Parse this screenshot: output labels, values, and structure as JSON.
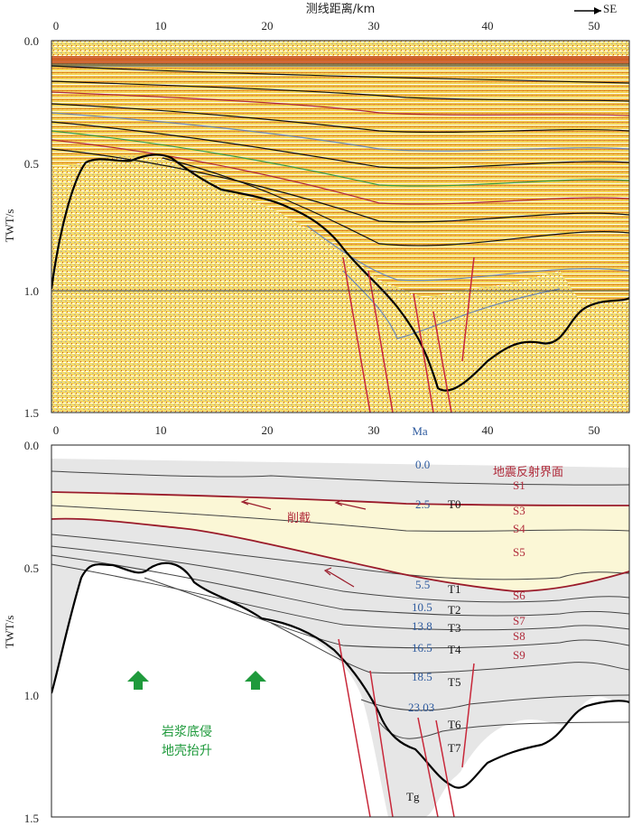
{
  "top_panel": {
    "x_axis_title": "测线距离/km",
    "direction_label": "SE",
    "y_axis_title": "TWT/s",
    "x_ticks": [
      "0",
      "10",
      "20",
      "30",
      "40",
      "50"
    ],
    "y_ticks": [
      "0.0",
      "0.5",
      "1.0",
      "1.5"
    ]
  },
  "bottom_panel": {
    "y_axis_title": "TWT/s",
    "x_ticks": [
      "0",
      "10",
      "20",
      "30",
      "40",
      "50"
    ],
    "y_ticks": [
      "0.0",
      "0.5",
      "1.0",
      "1.5"
    ],
    "ma_header": "Ma",
    "legend_title": "地震反射界面",
    "truncation_label": "削截",
    "magma_label_1": "岩浆底侵",
    "magma_label_2": "地壳抬升",
    "ages": [
      "0.0",
      "2.5",
      "5.5",
      "10.5",
      "13.8",
      "16.5",
      "18.5",
      "23.03"
    ],
    "t_labels": [
      "T0",
      "T1",
      "T2",
      "T3",
      "T4",
      "T5",
      "T6",
      "T7",
      "Tg"
    ],
    "s_labels": [
      "S1",
      "S3",
      "S4",
      "S5",
      "S6",
      "S7",
      "S8",
      "S9"
    ]
  },
  "colors": {
    "seismic_yellow": "#f3d13a",
    "fault_red": "#c8283a",
    "horizon_dark_red": "#9a1b2a",
    "age_blue": "#2d5a9e",
    "arrow_green": "#1f9a3c",
    "highlight_band": "#fbf7d6",
    "sediment_gray": "#e6e6e6"
  }
}
